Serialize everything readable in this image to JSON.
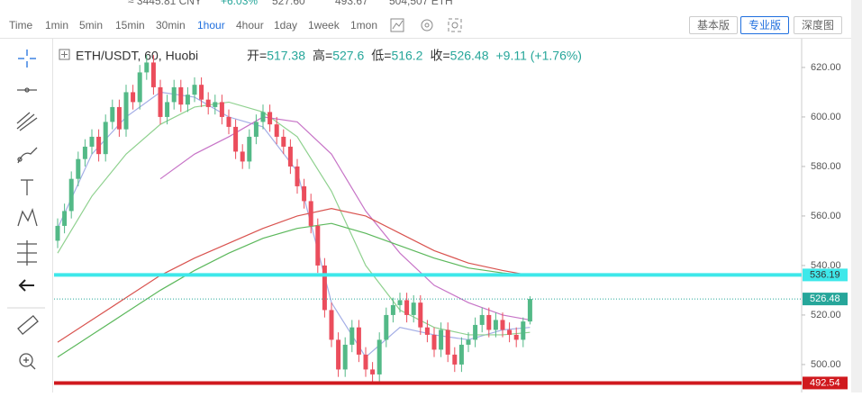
{
  "ticker_bar": {
    "cny": "≈ 3445.81 CNY",
    "change": "+6.03%",
    "high": "527.60",
    "low": "493.67",
    "volume": "504,507 ETH"
  },
  "toolbar": {
    "intervals": [
      "Time",
      "1min",
      "5min",
      "15min",
      "30min",
      "1hour",
      "4hour",
      "1day",
      "1week",
      "1mon"
    ],
    "selected": "1hour",
    "views": [
      "基本版",
      "专业版",
      "深度图"
    ],
    "selected_view": "专业版"
  },
  "chart_data": {
    "type": "candlestick",
    "title": "ETH/USDT, 60, Huobi",
    "legend_fields": [
      {
        "label": "开=",
        "value": 517.38
      },
      {
        "label": "高=",
        "value": 527.6
      },
      {
        "label": "低=",
        "value": 516.2
      },
      {
        "label": "收=",
        "value": 526.48
      }
    ],
    "change": "+9.11 (+1.76%)",
    "up_color": "#53b987",
    "down_color": "#eb4d5c",
    "open": [
      550,
      556,
      562,
      575,
      583,
      588,
      592,
      585,
      598,
      604,
      595,
      610,
      606,
      618,
      622,
      612,
      600,
      606,
      612,
      605,
      609,
      613,
      607,
      604,
      606,
      600,
      596,
      586,
      582,
      592,
      598,
      602,
      597,
      592,
      588,
      580,
      572,
      566,
      556,
      540,
      522,
      510,
      498,
      508,
      515,
      504,
      498,
      496,
      510,
      520,
      524,
      526,
      520,
      525,
      515,
      512,
      506,
      514,
      504,
      500,
      508,
      510,
      516,
      520,
      514,
      518,
      514,
      512,
      510,
      517.38
    ],
    "high": [
      559,
      565,
      578,
      586,
      591,
      595,
      595,
      601,
      607,
      607,
      613,
      613,
      621,
      625,
      625,
      615,
      609,
      615,
      615,
      612,
      616,
      616,
      610,
      609,
      609,
      603,
      599,
      589,
      595,
      601,
      605,
      605,
      600,
      595,
      591,
      583,
      575,
      569,
      559,
      543,
      525,
      513,
      511,
      518,
      518,
      507,
      501,
      513,
      523,
      527,
      529,
      529,
      528,
      528,
      518,
      515,
      517,
      517,
      507,
      511,
      513,
      519,
      523,
      523,
      521,
      521,
      517,
      515,
      519,
      527.6
    ],
    "low": [
      547,
      553,
      559,
      572,
      580,
      585,
      582,
      582,
      595,
      592,
      592,
      603,
      603,
      615,
      609,
      597,
      597,
      603,
      602,
      602,
      606,
      604,
      601,
      601,
      597,
      593,
      583,
      579,
      579,
      589,
      595,
      594,
      589,
      585,
      577,
      569,
      563,
      553,
      537,
      519,
      507,
      495,
      495,
      505,
      501,
      495,
      493,
      493,
      507,
      517,
      521,
      517,
      517,
      512,
      509,
      503,
      503,
      501,
      497,
      497,
      505,
      507,
      513,
      511,
      511,
      511,
      509,
      507,
      507,
      516.2
    ],
    "close": [
      556,
      562,
      575,
      583,
      588,
      592,
      585,
      598,
      604,
      595,
      610,
      606,
      618,
      622,
      612,
      600,
      606,
      612,
      605,
      609,
      613,
      607,
      604,
      606,
      600,
      596,
      586,
      582,
      592,
      598,
      602,
      597,
      592,
      588,
      580,
      572,
      566,
      556,
      540,
      522,
      510,
      498,
      508,
      515,
      504,
      498,
      496,
      510,
      520,
      524,
      526,
      520,
      525,
      515,
      512,
      506,
      514,
      504,
      500,
      508,
      510,
      516,
      520,
      514,
      518,
      514,
      512,
      510,
      517.38,
      526.48
    ],
    "ma_x": [
      0,
      5,
      10,
      15,
      20,
      25,
      30,
      35,
      40,
      45,
      50,
      55,
      60,
      65,
      69
    ],
    "series": [
      {
        "color": "#a4aee6",
        "values": [
          555,
          585,
          600,
          610,
          608,
          600,
          596,
          578,
          525,
          503,
          515,
          512,
          510,
          514,
          515
        ]
      },
      {
        "color": "#8fd18f",
        "values": [
          545,
          568,
          585,
          597,
          604,
          606,
          602,
          592,
          570,
          540,
          522,
          515,
          512,
          512,
          513
        ]
      },
      {
        "color": "#c774c7",
        "values": [
          null,
          null,
          null,
          575,
          585,
          592,
          600,
          598,
          585,
          562,
          545,
          532,
          525,
          520,
          518
        ]
      },
      {
        "color": "#d9534f",
        "values": [
          509,
          518,
          527,
          536,
          543,
          549,
          555,
          560,
          563,
          560,
          553,
          546,
          541,
          538,
          536
        ]
      },
      {
        "color": "#5cb85c",
        "values": [
          503,
          512,
          521,
          530,
          538,
          545,
          551,
          555,
          557,
          553,
          548,
          543,
          539,
          537,
          536
        ]
      }
    ],
    "price_lines": [
      {
        "value": 536.19,
        "color": "#3ee8ea",
        "text_color": "#333333",
        "style": "solid",
        "width": 4
      },
      {
        "value": 526.48,
        "color": "#26a69a",
        "text_color": "#ffffff",
        "style": "dotted",
        "width": 1
      },
      {
        "value": 492.54,
        "color": "#d0191e",
        "text_color": "#ffffff",
        "style": "solid",
        "width": 4
      }
    ],
    "ylim": [
      488.7,
      632.7
    ],
    "yticks": [
      {
        "value": 620,
        "label": "620.00"
      },
      {
        "value": 600,
        "label": "600.00"
      },
      {
        "value": 580,
        "label": "580.00"
      },
      {
        "value": 560,
        "label": "560.00"
      },
      {
        "value": 540,
        "label": "540.00"
      },
      {
        "value": 520,
        "label": "520.00"
      },
      {
        "value": 500,
        "label": "500.00"
      }
    ]
  }
}
